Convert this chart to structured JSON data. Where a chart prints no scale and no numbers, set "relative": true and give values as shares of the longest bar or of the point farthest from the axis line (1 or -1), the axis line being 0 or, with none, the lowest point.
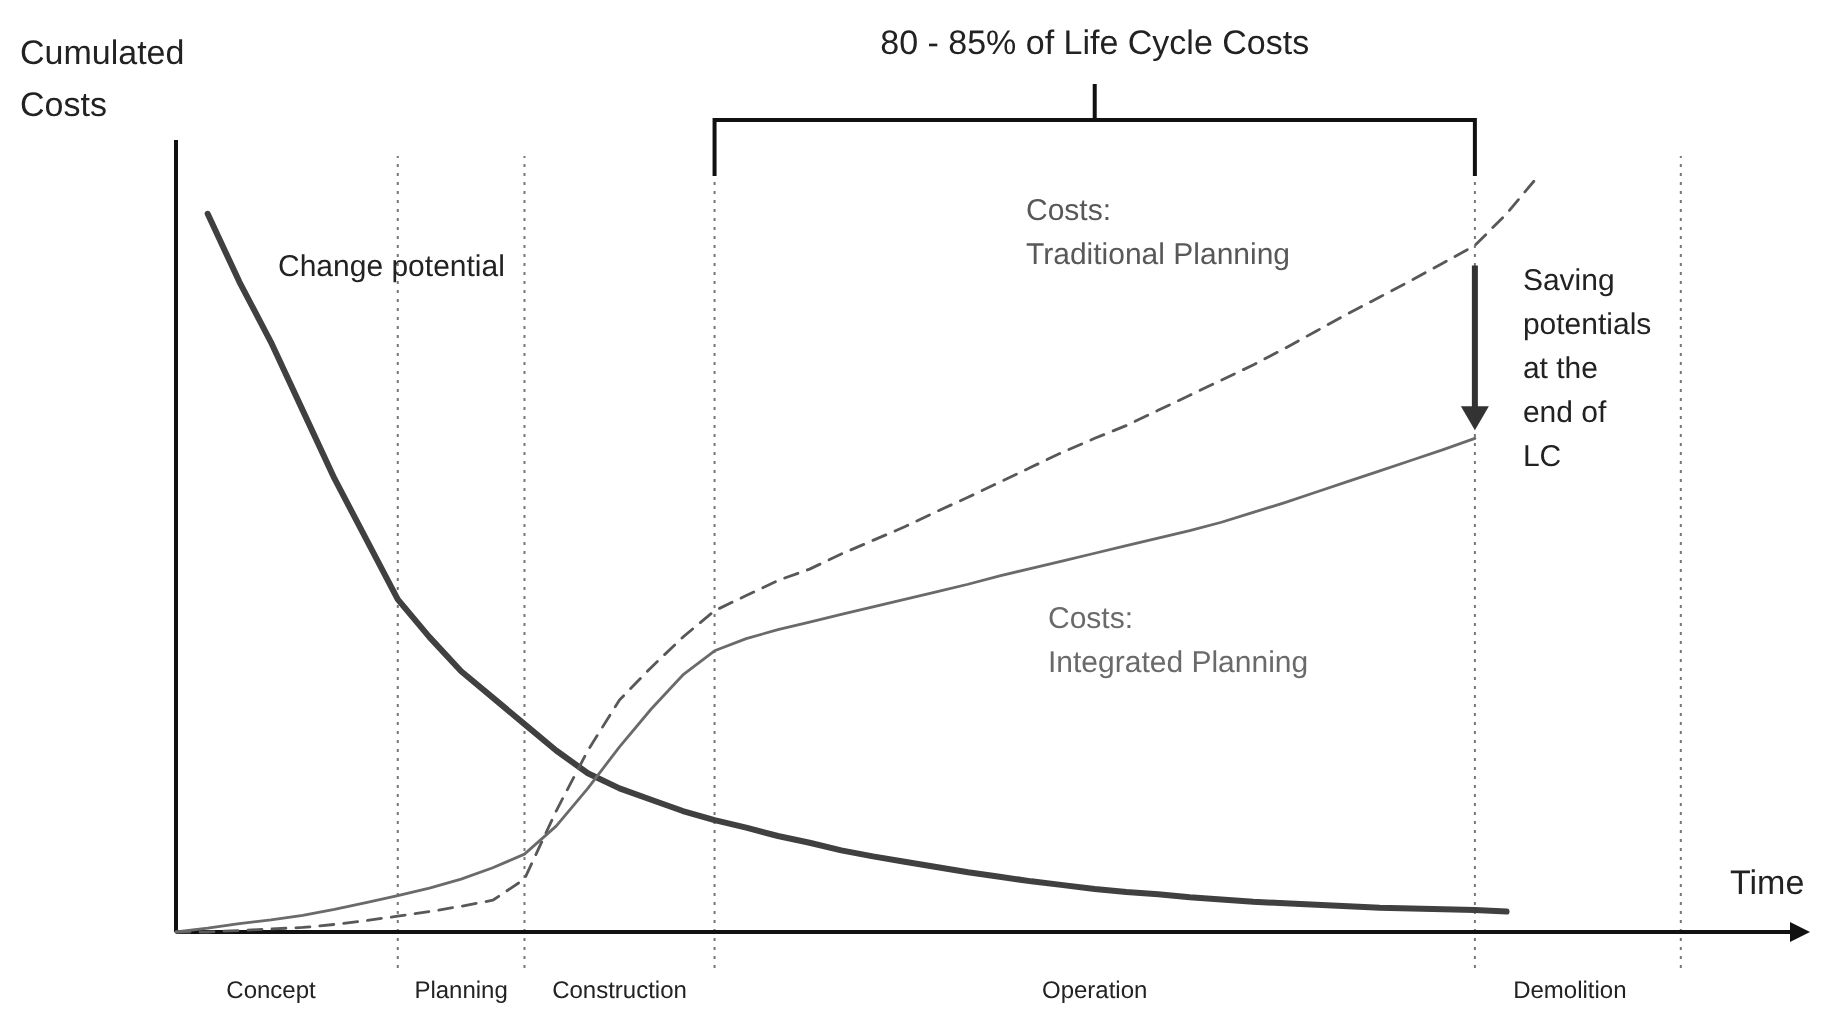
{
  "chart_data": {
    "type": "line",
    "relative": true,
    "grid": "x",
    "xlabel": "Time",
    "ylabel": "Cumulated Costs",
    "categories": [
      null,
      null,
      null,
      "Concept",
      null,
      null,
      null,
      null,
      null,
      "Planning",
      null,
      null,
      null,
      null,
      "Construction",
      null,
      null,
      null,
      null,
      null,
      null,
      null,
      null,
      null,
      null,
      null,
      null,
      null,
      null,
      "Operation",
      null,
      null,
      null,
      null,
      null,
      null,
      null,
      null,
      null,
      null,
      null,
      null,
      null,
      null,
      "Demolition",
      null,
      null,
      null,
      null,
      null,
      null
    ],
    "series": [
      {
        "name": "Change potential",
        "color": "#404040",
        "line_style": "solid",
        "values": [
          null,
          0.95,
          0.86,
          0.78,
          0.69,
          0.6,
          0.52,
          0.44,
          0.39,
          0.345,
          0.31,
          0.275,
          0.24,
          0.21,
          0.19,
          0.175,
          0.16,
          0.148,
          0.138,
          0.127,
          0.118,
          0.108,
          0.1,
          0.093,
          0.086,
          0.079,
          0.073,
          0.067,
          0.062,
          0.057,
          0.053,
          0.05,
          0.046,
          0.043,
          0.04,
          0.038,
          0.036,
          0.034,
          0.032,
          0.031,
          0.03,
          0.029,
          0.027,
          null,
          null,
          null,
          null,
          null,
          null,
          null,
          null
        ]
      },
      {
        "name": "Costs: Traditional Planning",
        "color": "#585858",
        "line_style": "dashed",
        "values": [
          0,
          0,
          0.002,
          0.004,
          0.006,
          0.01,
          0.015,
          0.021,
          0.027,
          0.034,
          0.042,
          0.07,
          0.16,
          0.24,
          0.307,
          0.35,
          0.39,
          0.425,
          0.445,
          0.465,
          0.48,
          0.5,
          0.518,
          0.536,
          0.556,
          0.575,
          0.595,
          0.615,
          0.635,
          0.653,
          0.67,
          0.69,
          0.71,
          0.73,
          0.75,
          0.772,
          0.795,
          0.818,
          0.84,
          0.862,
          0.885,
          0.908,
          0.95,
          1,
          null,
          null,
          null,
          null,
          null,
          null,
          null
        ]
      },
      {
        "name": "Costs: Integrated Planning",
        "color": "#6a6a6a",
        "line_style": "solid",
        "values": [
          0,
          0.005,
          0.011,
          0.016,
          0.022,
          0.03,
          0.039,
          0.048,
          0.058,
          0.07,
          0.085,
          0.103,
          0.14,
          0.19,
          0.245,
          0.295,
          0.34,
          0.372,
          0.388,
          0.4,
          0.41,
          0.42,
          0.43,
          0.44,
          0.45,
          0.46,
          0.471,
          0.481,
          0.491,
          0.501,
          0.511,
          0.521,
          0.531,
          0.542,
          0.555,
          0.568,
          0.582,
          0.596,
          0.61,
          0.624,
          0.638,
          0.653,
          null,
          null,
          null,
          null,
          null,
          null,
          null,
          null,
          null
        ]
      }
    ],
    "annotations": [
      "80 - 85% of Life Cycle Costs",
      "Saving potentials at the end of LC"
    ]
  }
}
